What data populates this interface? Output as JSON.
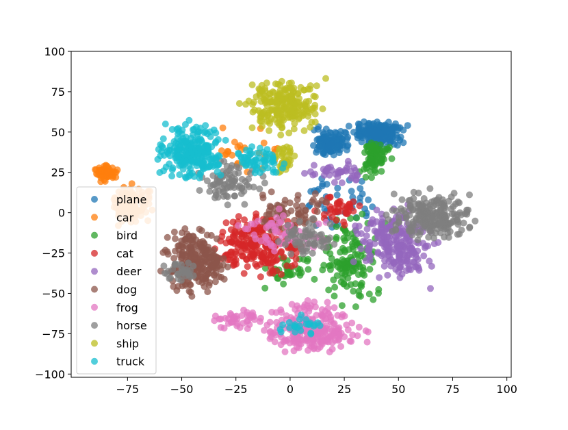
{
  "chart_data": {
    "type": "scatter",
    "title": "",
    "xlabel": "",
    "ylabel": "",
    "xlim": [
      -101,
      102
    ],
    "ylim": [
      -102,
      100
    ],
    "x_ticks": [
      -75,
      -50,
      -25,
      0,
      25,
      50,
      75,
      100
    ],
    "y_ticks": [
      -100,
      -75,
      -50,
      -25,
      0,
      25,
      50,
      75,
      100
    ],
    "grid": false,
    "legend_position": "lower-left",
    "marker_alpha": 0.75,
    "series": [
      {
        "name": "plane",
        "color": "#1f77b4",
        "clusters": [
          {
            "x": [
              25,
              56
            ],
            "y": [
              38,
              60
            ],
            "n": 220
          },
          {
            "x": [
              8,
              30
            ],
            "y": [
              32,
              55
            ],
            "n": 120
          },
          {
            "x": [
              -5,
              50
            ],
            "y": [
              -20,
              30
            ],
            "n": 40
          }
        ]
      },
      {
        "name": "car",
        "color": "#ff7f0e",
        "clusters": [
          {
            "x": [
              -92,
              -78
            ],
            "y": [
              18,
              32
            ],
            "n": 70
          },
          {
            "x": [
              -85,
              -60
            ],
            "y": [
              -10,
              22
            ],
            "n": 110
          },
          {
            "x": [
              -40,
              0
            ],
            "y": [
              20,
              55
            ],
            "n": 25
          }
        ]
      },
      {
        "name": "bird",
        "color": "#2ca02c",
        "clusters": [
          {
            "x": [
              30,
              48
            ],
            "y": [
              20,
              48
            ],
            "n": 90
          },
          {
            "x": [
              10,
              45
            ],
            "y": [
              -70,
              10
            ],
            "n": 130
          },
          {
            "x": [
              -20,
              20
            ],
            "y": [
              -50,
              -20
            ],
            "n": 40
          }
        ]
      },
      {
        "name": "cat",
        "color": "#d62728",
        "clusters": [
          {
            "x": [
              -40,
              10
            ],
            "y": [
              -45,
              5
            ],
            "n": 230
          },
          {
            "x": [
              10,
              35
            ],
            "y": [
              -10,
              15
            ],
            "n": 40
          }
        ]
      },
      {
        "name": "deer",
        "color": "#9467bd",
        "clusters": [
          {
            "x": [
              25,
              72
            ],
            "y": [
              -50,
              10
            ],
            "n": 230
          },
          {
            "x": [
              0,
              40
            ],
            "y": [
              15,
              35
            ],
            "n": 40
          }
        ]
      },
      {
        "name": "dog",
        "color": "#8c564b",
        "clusters": [
          {
            "x": [
              -62,
              -25
            ],
            "y": [
              -55,
              -5
            ],
            "n": 240
          },
          {
            "x": [
              -20,
              20
            ],
            "y": [
              -20,
              20
            ],
            "n": 70
          }
        ]
      },
      {
        "name": "frog",
        "color": "#e377c2",
        "clusters": [
          {
            "x": [
              -20,
              40
            ],
            "y": [
              -95,
              -50
            ],
            "n": 240
          },
          {
            "x": [
              -40,
              -10
            ],
            "y": [
              -75,
              -58
            ],
            "n": 40
          },
          {
            "x": [
              -30,
              25
            ],
            "y": [
              -30,
              5
            ],
            "n": 60
          }
        ]
      },
      {
        "name": "horse",
        "color": "#7f7f7f",
        "clusters": [
          {
            "x": [
              40,
              92
            ],
            "y": [
              -20,
              16
            ],
            "n": 220
          },
          {
            "x": [
              -45,
              -10
            ],
            "y": [
              0,
              35
            ],
            "n": 80
          },
          {
            "x": [
              -10,
              25
            ],
            "y": [
              -30,
              0
            ],
            "n": 60
          },
          {
            "x": [
              -62,
              -40
            ],
            "y": [
              -45,
              -25
            ],
            "n": 30
          }
        ]
      },
      {
        "name": "ship",
        "color": "#bcbd22",
        "clusters": [
          {
            "x": [
              -25,
              20
            ],
            "y": [
              45,
              90
            ],
            "n": 230
          },
          {
            "x": [
              -10,
              5
            ],
            "y": [
              20,
              45
            ],
            "n": 40
          }
        ]
      },
      {
        "name": "truck",
        "color": "#17becf",
        "clusters": [
          {
            "x": [
              -65,
              -25
            ],
            "y": [
              15,
              60
            ],
            "n": 230
          },
          {
            "x": [
              -30,
              0
            ],
            "y": [
              20,
              45
            ],
            "n": 60
          },
          {
            "x": [
              -10,
              20
            ],
            "y": [
              -80,
              -60
            ],
            "n": 25
          }
        ]
      }
    ]
  }
}
